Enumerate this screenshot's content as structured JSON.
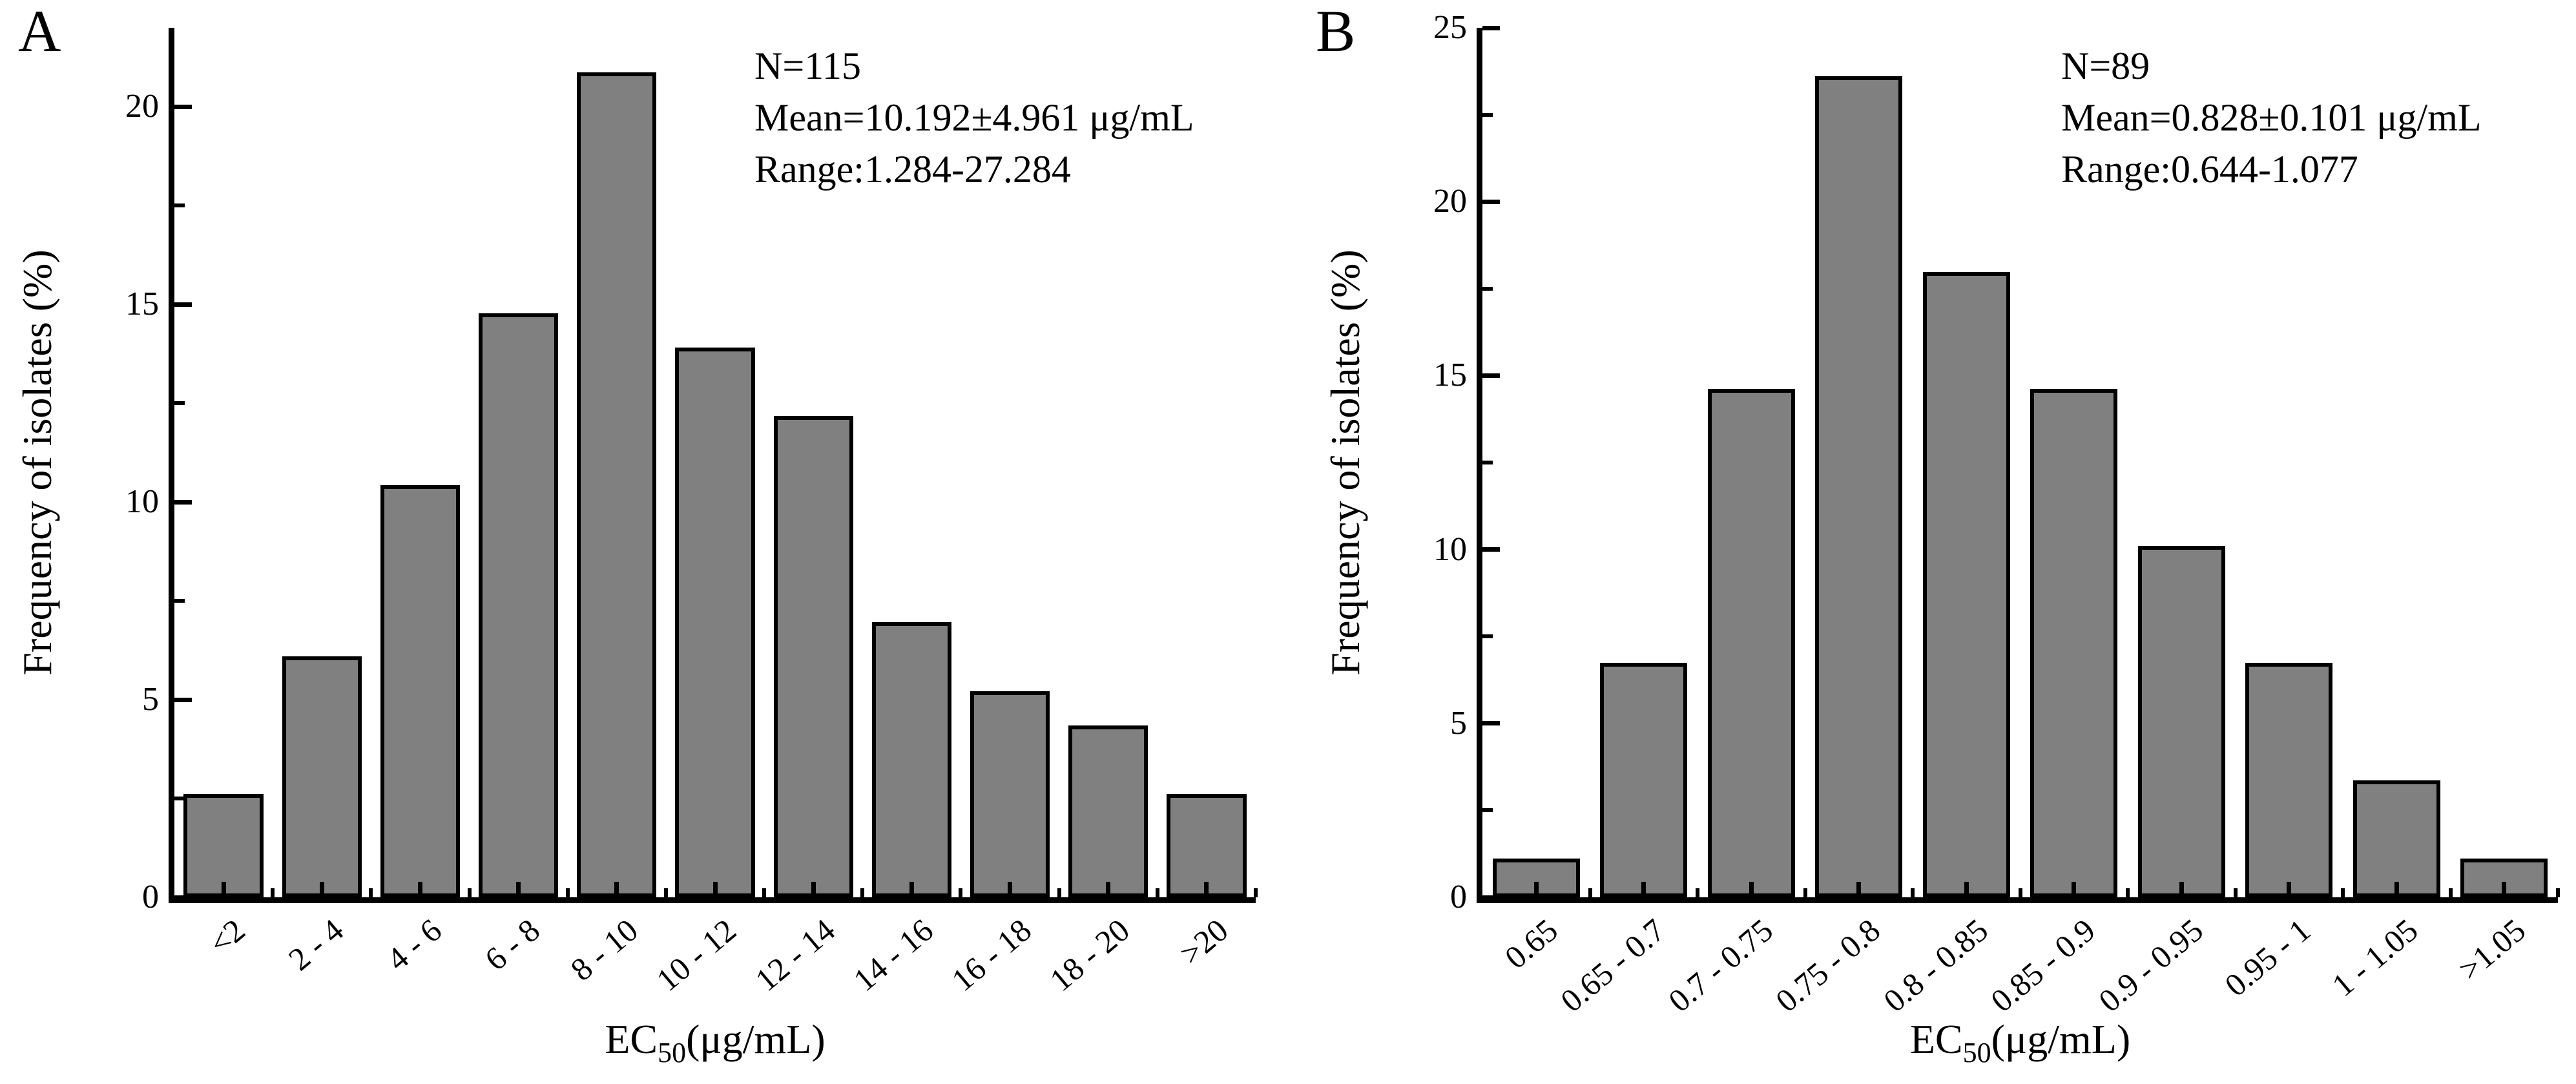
{
  "figure": {
    "background_color": "#ffffff",
    "text_color": "#000000"
  },
  "chart_data": [
    {
      "type": "bar",
      "panel_label": "A",
      "categories": [
        "<2",
        "2 - 4",
        "4 - 6",
        "6 - 8",
        "8 - 10",
        "10 - 12",
        "12 - 14",
        "14 - 16",
        "16 - 18",
        "18 - 20",
        ">20"
      ],
      "values": [
        2.61,
        6.09,
        10.43,
        14.78,
        20.87,
        13.91,
        12.17,
        6.96,
        5.22,
        4.35,
        2.61
      ],
      "annotation": {
        "n": "N=115",
        "mean": "Mean=10.192±4.961 μg/mL",
        "range": "Range:1.284-27.284"
      },
      "xlabel": {
        "prefix": "EC",
        "sub": "50",
        "suffix": "(μg/mL)"
      },
      "ylabel": "Frequency of isolates (%)",
      "ylim": [
        0,
        22
      ],
      "ytick_labels": [
        0,
        5,
        10,
        15,
        20
      ],
      "ytick_minor_step": 2.5,
      "grid": false,
      "bar_color": "#808080",
      "bar_edge_color": "#000000"
    },
    {
      "type": "bar",
      "panel_label": "B",
      "categories": [
        "0.65",
        "0.65 - 0.7",
        "0.7 - 0.75",
        "0.75 - 0.8",
        "0.8 - 0.85",
        "0.85 - 0.9",
        "0.9 - 0.95",
        "0.95 - 1",
        "1 - 1.05",
        ">1.05"
      ],
      "values": [
        1.12,
        6.74,
        14.61,
        23.6,
        17.98,
        14.61,
        10.11,
        6.74,
        3.37,
        1.12
      ],
      "annotation": {
        "n": "N=89",
        "mean": "Mean=0.828±0.101 μg/mL",
        "range": "Range:0.644-1.077"
      },
      "xlabel": {
        "prefix": "EC",
        "sub": "50",
        "suffix": "(μg/mL)"
      },
      "ylabel": "Frequency of isolates (%)",
      "ylim": [
        0,
        25
      ],
      "ytick_labels": [
        0,
        5,
        10,
        15,
        20,
        25
      ],
      "ytick_minor_step": 2.5,
      "grid": false,
      "bar_color": "#808080",
      "bar_edge_color": "#000000"
    }
  ]
}
